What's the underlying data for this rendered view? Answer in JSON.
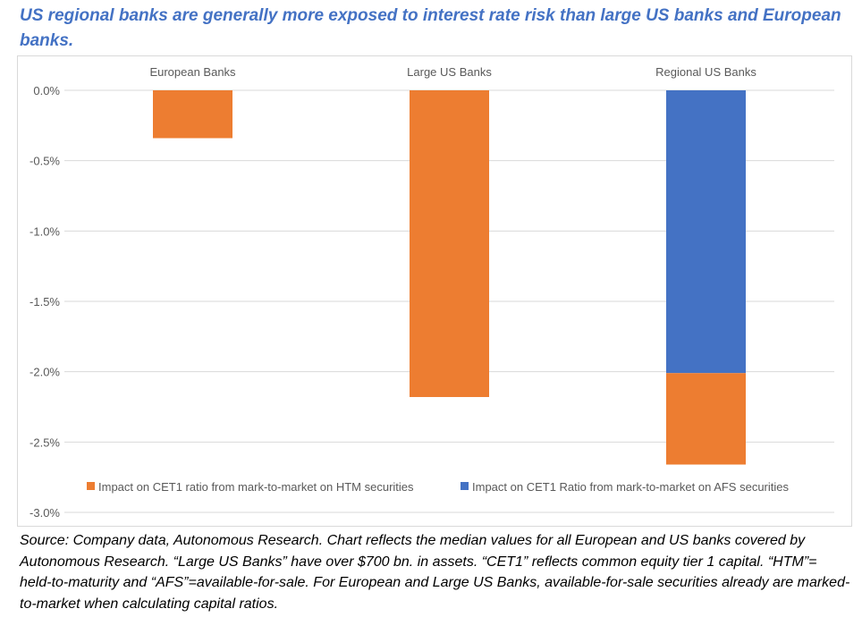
{
  "header": {
    "title": "US regional banks are generally more exposed to interest rate risk than large US banks and European banks."
  },
  "footer": {
    "source": "Source: Company data, Autonomous Research. Chart reflects the median values for all European and US banks covered by Autonomous Research. “Large US Banks” have over $700 bn. in assets. “CET1” reflects common equity tier 1 capital. “HTM”= held-to-maturity and “AFS”=available-for-sale. For European and Large US Banks, available-for-sale securities already are marked-to-market when calculating capital ratios."
  },
  "chart_data": {
    "type": "bar",
    "stacked": true,
    "categories": [
      "European Banks",
      "Large US Banks",
      "Regional US Banks"
    ],
    "category_label_position": "top",
    "series": [
      {
        "name": "Impact on CET1 Ratio from mark-to-market on AFS securities",
        "values": [
          0,
          0,
          -2.01
        ],
        "color": "#4472c4"
      },
      {
        "name": "Impact on CET1 ratio from mark-to-market on HTM securities",
        "values": [
          -0.34,
          -2.18,
          -0.65
        ],
        "color": "#ed7d31"
      }
    ],
    "y_ticks": [
      "0.0%",
      "-0.5%",
      "-1.0%",
      "-1.5%",
      "-2.0%",
      "-2.5%",
      "-3.0%"
    ],
    "ylim": [
      -3.0,
      0.0
    ],
    "y_unit": "%",
    "grid": true,
    "legend_position": "bottom",
    "legend_order": [
      1,
      0
    ]
  }
}
